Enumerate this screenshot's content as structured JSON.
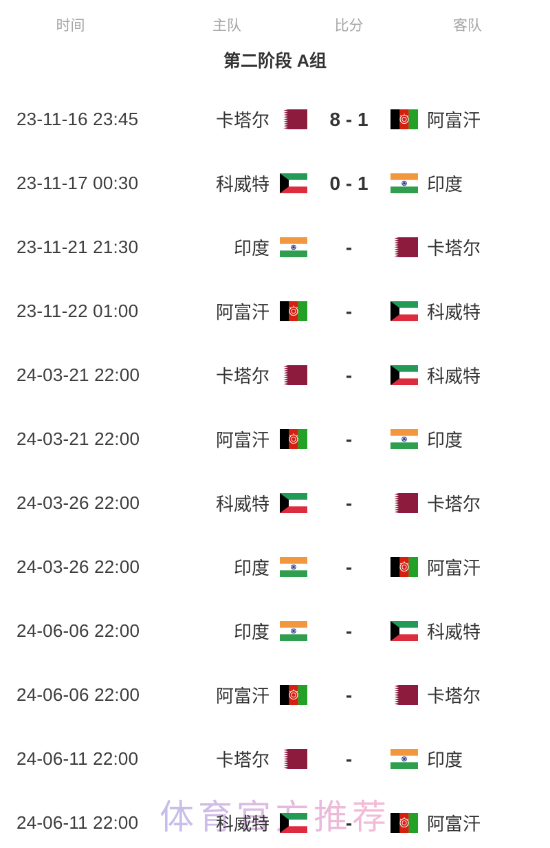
{
  "header": {
    "columns": [
      "时间",
      "主队",
      "比分",
      "客队"
    ]
  },
  "section": {
    "title": "第二阶段 A组"
  },
  "matches": [
    {
      "time": "23-11-16 23:45",
      "home_name": "卡塔尔",
      "home_flag": "qatar-flag",
      "score": "8 - 1",
      "away_name": "阿富汗",
      "away_flag": "afghanistan-flag"
    },
    {
      "time": "23-11-17 00:30",
      "home_name": "科威特",
      "home_flag": "kuwait-flag",
      "score": "0 - 1",
      "away_name": "印度",
      "away_flag": "india-flag"
    },
    {
      "time": "23-11-21 21:30",
      "home_name": "印度",
      "home_flag": "india-flag",
      "score": "-",
      "away_name": "卡塔尔",
      "away_flag": "qatar-flag"
    },
    {
      "time": "23-11-22 01:00",
      "home_name": "阿富汗",
      "home_flag": "afghanistan-flag",
      "score": "-",
      "away_name": "科威特",
      "away_flag": "kuwait-flag"
    },
    {
      "time": "24-03-21 22:00",
      "home_name": "卡塔尔",
      "home_flag": "qatar-flag",
      "score": "-",
      "away_name": "科威特",
      "away_flag": "kuwait-flag"
    },
    {
      "time": "24-03-21 22:00",
      "home_name": "阿富汗",
      "home_flag": "afghanistan-flag",
      "score": "-",
      "away_name": "印度",
      "away_flag": "india-flag"
    },
    {
      "time": "24-03-26 22:00",
      "home_name": "科威特",
      "home_flag": "kuwait-flag",
      "score": "-",
      "away_name": "卡塔尔",
      "away_flag": "qatar-flag"
    },
    {
      "time": "24-03-26 22:00",
      "home_name": "印度",
      "home_flag": "india-flag",
      "score": "-",
      "away_name": "阿富汗",
      "away_flag": "afghanistan-flag"
    },
    {
      "time": "24-06-06 22:00",
      "home_name": "印度",
      "home_flag": "india-flag",
      "score": "-",
      "away_name": "科威特",
      "away_flag": "kuwait-flag"
    },
    {
      "time": "24-06-06 22:00",
      "home_name": "阿富汗",
      "home_flag": "afghanistan-flag",
      "score": "-",
      "away_name": "卡塔尔",
      "away_flag": "qatar-flag"
    },
    {
      "time": "24-06-11 22:00",
      "home_name": "卡塔尔",
      "home_flag": "qatar-flag",
      "score": "-",
      "away_name": "印度",
      "away_flag": "india-flag"
    },
    {
      "time": "24-06-11 22:00",
      "home_name": "科威特",
      "home_flag": "kuwait-flag",
      "score": "-",
      "away_name": "阿富汗",
      "away_flag": "afghanistan-flag"
    }
  ],
  "watermark": {
    "text": "体育官方推荐"
  },
  "colors": {
    "header_text": "#a6a6a6",
    "title_text": "#333333",
    "time_text": "#3d3d3d",
    "team_text": "#333333",
    "score_text": "#333333",
    "watermark_start": "#b7b4e8",
    "watermark_end": "#f6aecb",
    "qatar_maroon": "#8d1b3d",
    "afghan_black": "#000000",
    "afghan_red": "#d32011",
    "afghan_green": "#23a127",
    "kuwait_green": "#239b56",
    "kuwait_red": "#dd2c3e",
    "kuwait_black": "#000000",
    "india_saffron": "#f2973e",
    "india_green": "#2f9e4f",
    "india_navy": "#1a2a80"
  }
}
